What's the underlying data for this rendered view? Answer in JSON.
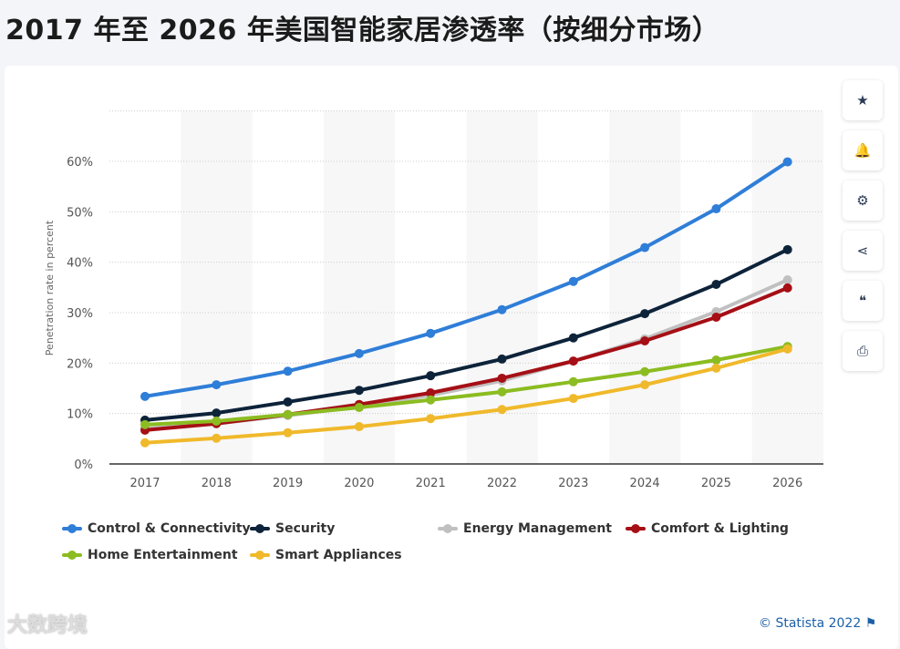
{
  "title": "2017 年至 2026 年美国智能家居渗透率（按细分市场）",
  "sidebar": [
    {
      "icon": "star-icon",
      "glyph": "★"
    },
    {
      "icon": "bell-icon",
      "glyph": "🔔"
    },
    {
      "icon": "gear-icon",
      "glyph": "⚙"
    },
    {
      "icon": "share-icon",
      "glyph": "⋖"
    },
    {
      "icon": "quote-icon",
      "glyph": "❝"
    },
    {
      "icon": "print-icon",
      "glyph": "⎙"
    }
  ],
  "credit": "© Statista 2022",
  "watermark": "大数跨境",
  "chart_data": {
    "type": "line",
    "title": "2017 年至 2026 年美国智能家居渗透率（按细分市场）",
    "xlabel": "",
    "ylabel": "Penetration rate in percent",
    "ylim": [
      0,
      70
    ],
    "yticks": [
      0,
      10,
      20,
      30,
      40,
      50,
      60
    ],
    "ytick_labels": [
      "0%",
      "10%",
      "20%",
      "30%",
      "40%",
      "50%",
      "60%"
    ],
    "categories": [
      "2017",
      "2018",
      "2019",
      "2020",
      "2021",
      "2022",
      "2023",
      "2024",
      "2025",
      "2026"
    ],
    "legend_position": "bottom",
    "grid": true,
    "series": [
      {
        "name": "Control & Connectivity",
        "color": "#2f7ed8",
        "values": [
          13.4,
          15.7,
          18.4,
          21.9,
          25.9,
          30.6,
          36.2,
          42.9,
          50.6,
          59.9
        ]
      },
      {
        "name": "Security",
        "color": "#0d233a",
        "values": [
          8.7,
          10.1,
          12.3,
          14.6,
          17.5,
          20.8,
          25.0,
          29.8,
          35.6,
          42.5
        ]
      },
      {
        "name": "Energy Management",
        "color": "#c0c0c0",
        "values": [
          7.0,
          8.0,
          9.6,
          11.4,
          13.6,
          16.5,
          20.4,
          24.8,
          30.2,
          36.5
        ]
      },
      {
        "name": "Comfort & Lighting",
        "color": "#a50f15",
        "values": [
          6.7,
          8.0,
          9.8,
          11.8,
          14.1,
          17.0,
          20.4,
          24.4,
          29.1,
          34.9
        ]
      },
      {
        "name": "Home Entertainment",
        "color": "#8bbc21",
        "values": [
          7.8,
          8.5,
          9.8,
          11.2,
          12.7,
          14.3,
          16.3,
          18.3,
          20.6,
          23.3
        ]
      },
      {
        "name": "Smart Appliances",
        "color": "#f0b92b",
        "values": [
          4.2,
          5.1,
          6.2,
          7.4,
          9.0,
          10.8,
          13.0,
          15.7,
          19.0,
          22.8
        ]
      }
    ]
  }
}
